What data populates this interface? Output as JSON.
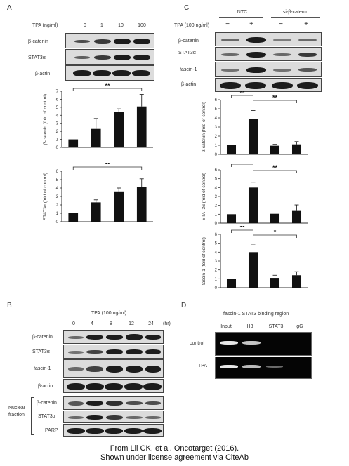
{
  "panels": {
    "A": {
      "letter": "A",
      "tpa_label": "TPA (ng/ml)",
      "doses": [
        "0",
        "1",
        "10",
        "100"
      ],
      "rows": [
        "β-catenin",
        "STAT3α",
        "β-actin"
      ]
    },
    "C": {
      "letter": "C",
      "groups": [
        "NTC",
        "si-β-catenin"
      ],
      "tpa_label": "TPA (100 ng/ml)",
      "signs": [
        "−",
        "+",
        "−",
        "+"
      ],
      "rows": [
        "β-catenin",
        "STAT3α",
        "fascin-1",
        "β-actin"
      ]
    },
    "B": {
      "letter": "B",
      "tpa_label": "TPA  (100 ng/ml)",
      "times": [
        "0",
        "4",
        "8",
        "12",
        "24"
      ],
      "time_unit": "(hr)",
      "rows": [
        "β-catenin",
        "STAT3α",
        "fascin-1",
        "β-actin"
      ],
      "nuclear_label_1": "Nuclear",
      "nuclear_label_2": "fraction",
      "nuclear_rows": [
        "β-catenin",
        "STAT3α",
        "PARP"
      ]
    },
    "D": {
      "letter": "D",
      "title": "fascin-1  STAT3 binding  region",
      "lanes": [
        "Input",
        "H3",
        "STAT3",
        "IgG"
      ],
      "rows": [
        "control",
        "TPA"
      ]
    }
  },
  "chart_data": [
    {
      "type": "bar",
      "panel": "A",
      "categories": [
        "0",
        "1",
        "10",
        "100"
      ],
      "values": [
        1.0,
        2.3,
        4.4,
        5.1
      ],
      "errors": [
        0.0,
        1.3,
        0.4,
        1.5
      ],
      "ylabel": "β-catenin (fold of control)",
      "ylim": [
        0,
        7
      ],
      "yticks": [
        "0",
        "1",
        "2",
        "3",
        "4",
        "5",
        "6",
        "7"
      ],
      "significance": "**"
    },
    {
      "type": "bar",
      "panel": "A",
      "categories": [
        "0",
        "1",
        "10",
        "100"
      ],
      "values": [
        1.0,
        2.3,
        3.6,
        4.1
      ],
      "errors": [
        0.0,
        0.3,
        0.4,
        1.0
      ],
      "ylabel": "STAT3α (fold of control)",
      "ylim": [
        0,
        6
      ],
      "yticks": [
        "0",
        "1",
        "2",
        "3",
        "4",
        "5",
        "6"
      ],
      "significance": "**"
    },
    {
      "type": "bar",
      "panel": "C",
      "categories": [
        "NTC −",
        "NTC +",
        "si-β-catenin −",
        "si-β-catenin +"
      ],
      "values": [
        1.0,
        3.9,
        0.95,
        1.1
      ],
      "errors": [
        0.0,
        0.9,
        0.15,
        0.3
      ],
      "ylabel": "β-catenin (fold of control)",
      "ylim": [
        0,
        6
      ],
      "yticks": [
        "0",
        "1",
        "2",
        "3",
        "4",
        "5",
        "6"
      ],
      "significance": [
        "**",
        "**"
      ]
    },
    {
      "type": "bar",
      "panel": "C",
      "categories": [
        "NTC −",
        "NTC +",
        "si-β-catenin −",
        "si-β-catenin +"
      ],
      "values": [
        1.0,
        4.0,
        1.05,
        1.45
      ],
      "errors": [
        0.0,
        0.6,
        0.1,
        0.6
      ],
      "ylabel": "STAT3α (fold of control)",
      "ylim": [
        0,
        6
      ],
      "yticks": [
        "0",
        "1",
        "2",
        "3",
        "4",
        "5",
        "6"
      ],
      "significance": [
        "**",
        "**"
      ]
    },
    {
      "type": "bar",
      "panel": "C",
      "categories": [
        "NTC −",
        "NTC +",
        "si-β-catenin −",
        "si-β-catenin +"
      ],
      "values": [
        1.0,
        4.0,
        1.1,
        1.4
      ],
      "errors": [
        0.0,
        0.9,
        0.3,
        0.4
      ],
      "ylabel": "fascin-1 (fold of control)",
      "ylim": [
        0,
        6
      ],
      "yticks": [
        "0",
        "1",
        "2",
        "3",
        "4",
        "5",
        "6"
      ],
      "significance": [
        "**",
        "*"
      ]
    }
  ],
  "footer": {
    "line1": "From Lii CK, et al. Oncotarget (2016).",
    "line2": "Shown under license agreement via CiteAb"
  }
}
